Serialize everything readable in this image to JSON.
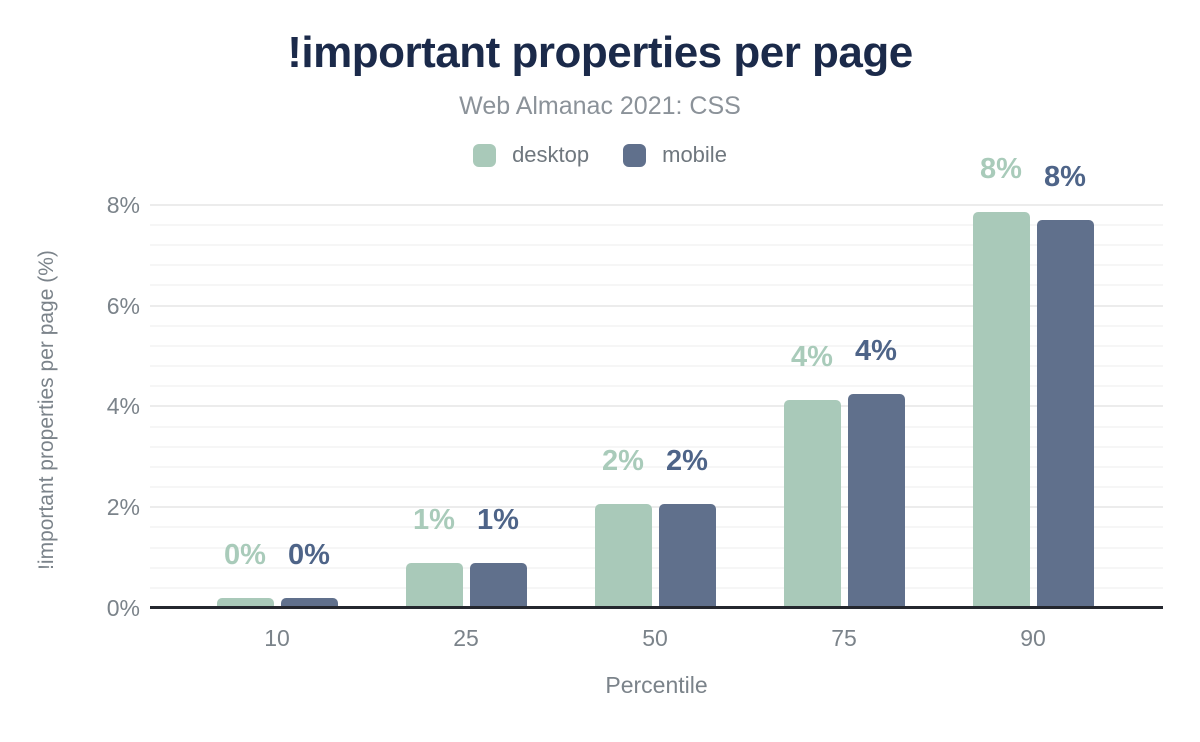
{
  "title": "!important properties per page",
  "subtitle": "Web Almanac 2021: CSS",
  "legend": [
    {
      "label": "desktop",
      "color": "#a9c9b9"
    },
    {
      "label": "mobile",
      "color": "#60708c"
    }
  ],
  "colors": {
    "title": "#1b2a4a",
    "axis_text": "#7b838a",
    "baseline": "#24272e",
    "grid_minor": "#f6f6f6",
    "grid_major": "#ececec",
    "background": "#ffffff"
  },
  "chart_data": {
    "type": "bar",
    "categories": [
      "10",
      "25",
      "50",
      "75",
      "90"
    ],
    "series": [
      {
        "name": "desktop",
        "values": [
          0.2,
          0.9,
          2.07,
          4.12,
          7.86
        ],
        "labels": [
          "0%",
          "1%",
          "2%",
          "4%",
          "8%"
        ],
        "color": "#a9c9b9",
        "label_color": "#a9cbba"
      },
      {
        "name": "mobile",
        "values": [
          0.2,
          0.9,
          2.07,
          4.25,
          7.7
        ],
        "labels": [
          "0%",
          "1%",
          "2%",
          "4%",
          "8%"
        ],
        "color": "#60708c",
        "label_color": "#4e6488"
      }
    ],
    "title": "!important properties per page",
    "subtitle": "Web Almanac 2021: CSS",
    "xlabel": "Percentile",
    "ylabel": "!important properties per page (%)",
    "ylim": [
      0,
      8.2
    ],
    "yticks": [
      {
        "value": 0,
        "label": "0%"
      },
      {
        "value": 2,
        "label": "2%"
      },
      {
        "value": 4,
        "label": "4%"
      },
      {
        "value": 6,
        "label": "6%"
      },
      {
        "value": 8,
        "label": "8%"
      }
    ],
    "grid": {
      "minor_step": 0.4,
      "major_step": 2,
      "minor_on": true,
      "major_on": true
    },
    "legend_position": "top"
  }
}
